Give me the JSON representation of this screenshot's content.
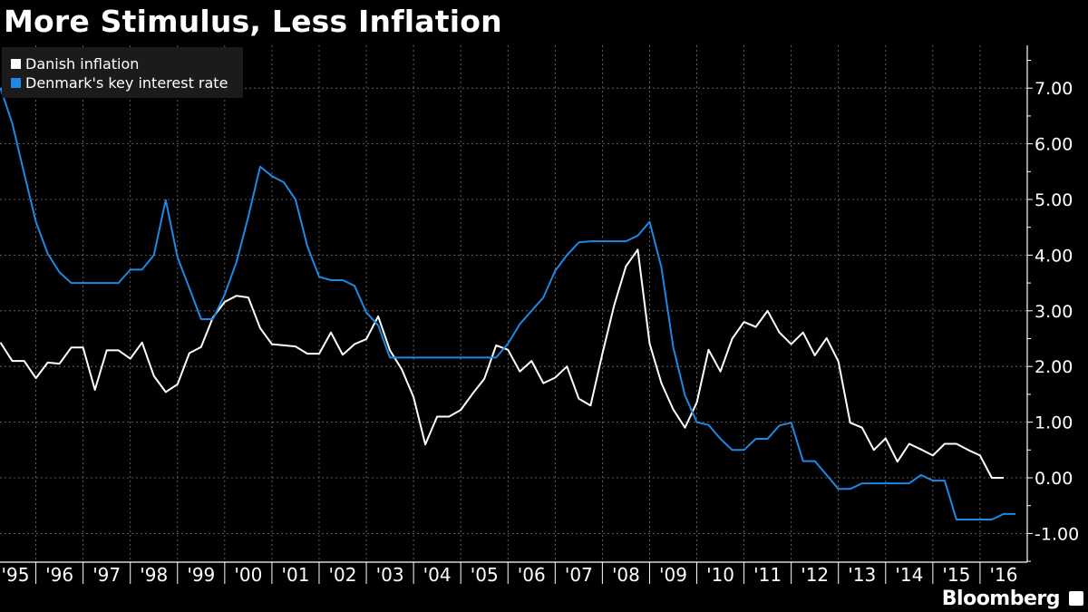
{
  "chart_data": {
    "type": "line",
    "title": "More Stimulus, Less Inflation",
    "x_start": "1995-Q2",
    "frequency": "quarterly",
    "x_tick_labels": [
      "'95",
      "'96",
      "'97",
      "'98",
      "'99",
      "'00",
      "'01",
      "'02",
      "'03",
      "'04",
      "'05",
      "'06",
      "'07",
      "'08",
      "'09",
      "'10",
      "'11",
      "'12",
      "'13",
      "'14",
      "'15",
      "'16"
    ],
    "y_tick_labels": [
      "7.00",
      "6.00",
      "5.00",
      "4.00",
      "3.00",
      "2.00",
      "1.00",
      "0.00",
      "-1.00"
    ],
    "ylim": [
      -1.5,
      7.7
    ],
    "xlim": [
      1995.24,
      2017.0
    ],
    "y_axis_side": "right",
    "grid": true,
    "legend_position": "top-left",
    "series": [
      {
        "name": "Danish inflation",
        "color": "#ffffff",
        "values": [
          2.43,
          2.1,
          2.1,
          1.79,
          2.07,
          2.05,
          2.34,
          2.34,
          1.58,
          2.29,
          2.29,
          2.14,
          2.43,
          1.83,
          1.54,
          1.68,
          2.24,
          2.35,
          2.88,
          3.16,
          3.27,
          3.24,
          2.69,
          2.4,
          2.38,
          2.36,
          2.23,
          2.23,
          2.61,
          2.21,
          2.4,
          2.49,
          2.9,
          2.29,
          1.95,
          1.45,
          0.6,
          1.1,
          1.1,
          1.22,
          1.51,
          1.78,
          2.38,
          2.3,
          1.91,
          2.1,
          1.7,
          1.8,
          2.0,
          1.42,
          1.3,
          2.23,
          3.1,
          3.8,
          4.1,
          2.41,
          1.7,
          1.23,
          0.9,
          1.35,
          2.3,
          1.91,
          2.5,
          2.8,
          2.71,
          3.0,
          2.61,
          2.4,
          2.61,
          2.2,
          2.51,
          2.09,
          0.99,
          0.9,
          0.5,
          0.71,
          0.29,
          0.61,
          0.51,
          0.4,
          0.61,
          0.61,
          0.5,
          0.4,
          0.0,
          0.0
        ]
      },
      {
        "name": "Denmark's key interest rate",
        "color": "#1e88e5",
        "values": [
          7.0,
          6.37,
          5.47,
          4.6,
          4.03,
          3.69,
          3.5,
          3.5,
          3.5,
          3.5,
          3.5,
          3.74,
          3.74,
          4.0,
          4.99,
          3.96,
          3.41,
          2.85,
          2.85,
          3.29,
          3.88,
          4.69,
          5.59,
          5.42,
          5.31,
          5.0,
          4.16,
          3.61,
          3.55,
          3.55,
          3.45,
          2.97,
          2.74,
          2.16,
          2.16,
          2.16,
          2.16,
          2.16,
          2.16,
          2.16,
          2.16,
          2.16,
          2.16,
          2.41,
          2.76,
          3.0,
          3.24,
          3.72,
          4.0,
          4.23,
          4.25,
          4.25,
          4.25,
          4.25,
          4.35,
          4.6,
          3.78,
          2.35,
          1.48,
          1.0,
          0.95,
          0.7,
          0.5,
          0.5,
          0.7,
          0.7,
          0.94,
          0.99,
          0.3,
          0.3,
          0.05,
          -0.2,
          -0.2,
          -0.1,
          -0.1,
          -0.1,
          -0.1,
          -0.1,
          0.05,
          -0.05,
          -0.05,
          -0.75,
          -0.75,
          -0.75,
          -0.75,
          -0.65,
          -0.65
        ]
      }
    ]
  },
  "branding": {
    "text": "Bloomberg"
  }
}
